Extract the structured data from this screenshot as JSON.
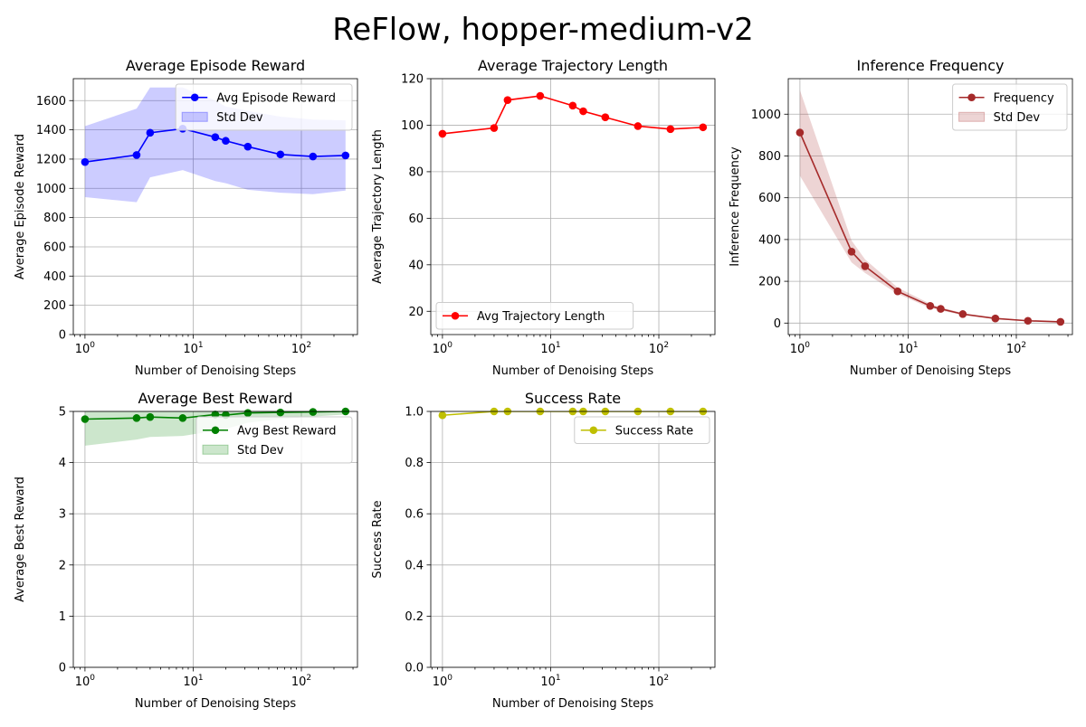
{
  "suptitle": "ReFlow, hopper-medium-v2",
  "chart_data": [
    {
      "id": "reward",
      "type": "line",
      "title": "Average Episode Reward",
      "xlabel": "Number of Denoising Steps",
      "ylabel": "Average Episode Reward",
      "xscale": "log",
      "xlim": [
        0.78,
        330
      ],
      "ylim": [
        0,
        1750
      ],
      "yticks": [
        0,
        200,
        400,
        600,
        800,
        1000,
        1200,
        1400,
        1600
      ],
      "xticks": [
        1,
        10,
        100
      ],
      "grid": true,
      "legend_position": "upper right",
      "series": [
        {
          "name": "Avg Episode Reward",
          "color": "#0000ff",
          "x": [
            1,
            3,
            4,
            8,
            16,
            20,
            32,
            64,
            128,
            256
          ],
          "values": [
            1180,
            1228,
            1380,
            1408,
            1350,
            1325,
            1285,
            1232,
            1218,
            1225
          ],
          "band_name": "Std Dev",
          "band_lower": [
            940,
            905,
            1075,
            1125,
            1050,
            1035,
            990,
            970,
            960,
            985
          ],
          "band_upper": [
            1425,
            1545,
            1690,
            1690,
            1600,
            1560,
            1530,
            1490,
            1470,
            1465
          ]
        }
      ]
    },
    {
      "id": "length",
      "type": "line",
      "title": "Average Trajectory Length",
      "xlabel": "Number of Denoising Steps",
      "ylabel": "Average Trajectory Length",
      "xscale": "log",
      "xlim": [
        0.78,
        330
      ],
      "ylim": [
        10,
        120
      ],
      "yticks": [
        20,
        40,
        60,
        80,
        100,
        120
      ],
      "xticks": [
        1,
        10,
        100
      ],
      "grid": true,
      "legend_position": "lower left",
      "series": [
        {
          "name": "Avg Trajectory Length",
          "color": "#ff0000",
          "x": [
            1,
            3,
            4,
            8,
            16,
            20,
            32,
            64,
            128,
            256
          ],
          "values": [
            96.3,
            98.8,
            110.8,
            112.6,
            108.4,
            106.0,
            103.4,
            99.6,
            98.3,
            99.1
          ]
        }
      ]
    },
    {
      "id": "frequency",
      "type": "line",
      "title": "Inference Frequency",
      "xlabel": "Number of Denoising Steps",
      "ylabel": "Inference Frequency",
      "xscale": "log",
      "xlim": [
        0.78,
        330
      ],
      "ylim": [
        -55,
        1170
      ],
      "yticks": [
        0,
        200,
        400,
        600,
        800,
        1000
      ],
      "xticks": [
        1,
        10,
        100
      ],
      "grid": true,
      "legend_position": "upper right",
      "series": [
        {
          "name": "Frequency",
          "color": "#a52a2a",
          "x": [
            1,
            3,
            4,
            8,
            16,
            20,
            32,
            64,
            128,
            256
          ],
          "values": [
            912,
            342,
            272,
            152,
            82,
            68,
            43,
            22,
            11,
            6
          ],
          "band_name": "Std Dev",
          "band_lower": [
            705,
            290,
            240,
            140,
            72,
            60,
            38,
            19,
            9,
            4
          ],
          "band_upper": [
            1115,
            395,
            305,
            170,
            92,
            76,
            48,
            25,
            13,
            8
          ]
        }
      ]
    },
    {
      "id": "best",
      "type": "line",
      "title": "Average Best Reward",
      "xlabel": "Number of Denoising Steps",
      "ylabel": "Average Best Reward",
      "xscale": "log",
      "xlim": [
        0.78,
        330
      ],
      "ylim": [
        0,
        5
      ],
      "yticks": [
        0,
        1,
        2,
        3,
        4,
        5
      ],
      "xticks": [
        1,
        10,
        100
      ],
      "grid": true,
      "legend_position": "upper right",
      "series": [
        {
          "name": "Avg Best Reward",
          "color": "#008000",
          "x": [
            1,
            3,
            4,
            8,
            16,
            20,
            32,
            64,
            128,
            256
          ],
          "values": [
            4.85,
            4.87,
            4.89,
            4.87,
            4.94,
            4.93,
            4.97,
            4.98,
            4.99,
            5.0
          ],
          "band_name": "Std Dev",
          "band_lower": [
            4.33,
            4.45,
            4.5,
            4.52,
            4.62,
            4.66,
            4.78,
            4.85,
            4.9,
            4.94
          ],
          "band_upper": [
            5.2,
            5.2,
            5.2,
            5.2,
            5.2,
            5.2,
            5.2,
            5.2,
            5.2,
            5.2
          ]
        }
      ]
    },
    {
      "id": "success",
      "type": "line",
      "title": "Success Rate",
      "xlabel": "Number of Denoising Steps",
      "ylabel": "Success Rate",
      "xscale": "log",
      "xlim": [
        0.78,
        330
      ],
      "ylim": [
        0,
        1.0
      ],
      "yticks": [
        0.0,
        0.2,
        0.4,
        0.6,
        0.8,
        1.0
      ],
      "ytick_decimals": 1,
      "xticks": [
        1,
        10,
        100
      ],
      "grid": true,
      "legend_position": "upper right",
      "series": [
        {
          "name": "Success Rate",
          "color": "#bfbf00",
          "x": [
            1,
            3,
            4,
            8,
            16,
            20,
            32,
            64,
            128,
            256
          ],
          "values": [
            0.985,
            1.0,
            1.0,
            1.0,
            1.0,
            1.0,
            1.0,
            1.0,
            1.0,
            1.0
          ]
        }
      ]
    }
  ]
}
